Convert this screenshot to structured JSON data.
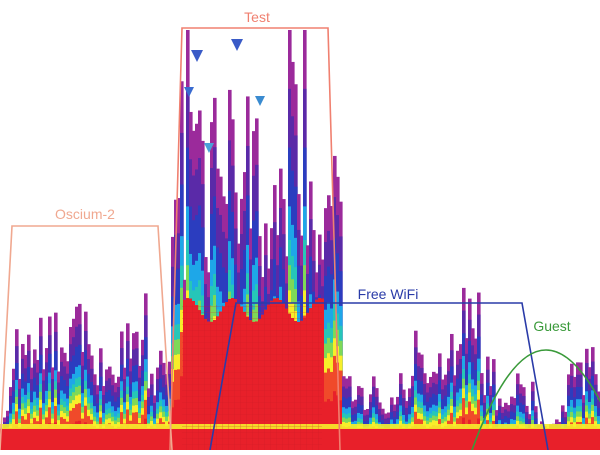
{
  "chart_data": {
    "type": "area",
    "title": "",
    "xlabel": "",
    "ylabel": "",
    "grid": false,
    "legend": "none",
    "density_colors": [
      "#e8202a",
      "#f04a2a",
      "#f7ee2a",
      "#7ed957",
      "#26c6b8",
      "#1ea7e8",
      "#2b3dbf",
      "#5a2aa8",
      "#9b2a9b"
    ],
    "networks": [
      {
        "name": "Test",
        "shape": "channel",
        "color": "#f08070"
      },
      {
        "name": "Oscium-2",
        "shape": "channel",
        "color": "#f0a890"
      },
      {
        "name": "Free WiFi",
        "shape": "channel",
        "color": "#2a3ba8"
      },
      {
        "name": "Guest",
        "shape": "arc",
        "color": "#3a9a3a"
      }
    ],
    "peak_markers": [
      {
        "shade": "#3a5bc7"
      },
      {
        "shade": "#3a5bc7"
      },
      {
        "shade": "#3a6bd0"
      },
      {
        "shade": "#3a8bd0"
      },
      {
        "shade": "#4aa0d8"
      }
    ]
  }
}
